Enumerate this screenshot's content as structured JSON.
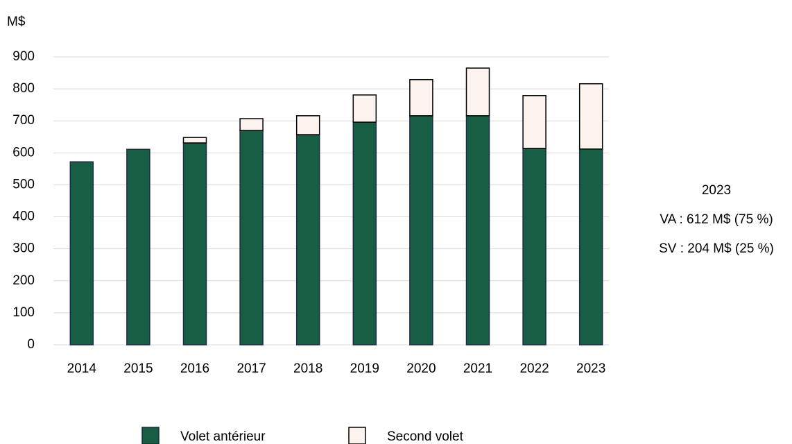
{
  "chart_data": {
    "type": "stacked_bar",
    "y_label": "M$",
    "categories": [
      "2014",
      "2015",
      "2016",
      "2017",
      "2018",
      "2019",
      "2020",
      "2021",
      "2022",
      "2023"
    ],
    "series": [
      {
        "name": "Volet antérieur",
        "color": "#175e45",
        "edge": "#1f2a44",
        "values": [
          572,
          611,
          631,
          670,
          657,
          696,
          716,
          716,
          614,
          612
        ]
      },
      {
        "name": "Second volet",
        "color": "#fcf3ee",
        "edge": "#000000",
        "values": [
          0,
          0,
          17,
          37,
          59,
          85,
          113,
          149,
          165,
          204
        ]
      }
    ],
    "ylim": [
      0,
      900
    ],
    "yticks": [
      0,
      100,
      200,
      300,
      400,
      500,
      600,
      700,
      800,
      900
    ],
    "grid": true,
    "annotation": [
      "2023",
      "VA : 612 M$ (75 %)",
      "SV : 204 M$  (25 %)"
    ],
    "legend": "bottom"
  }
}
